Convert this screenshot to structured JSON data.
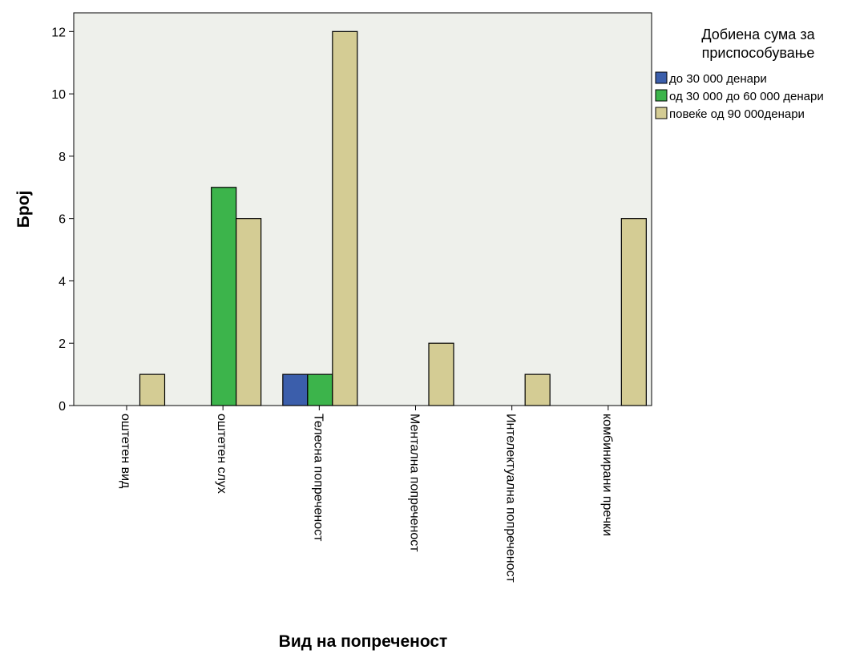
{
  "chart_data": {
    "type": "bar",
    "title": "",
    "xlabel": "Вид на попреченост",
    "ylabel": "Број",
    "ylim": [
      0,
      12.6
    ],
    "yticks": [
      0,
      2,
      4,
      6,
      8,
      10,
      12
    ],
    "grid": false,
    "legend_position": "right",
    "legend_title": [
      "Добиена сума за",
      "приспособување"
    ],
    "categories": [
      "оштетен вид",
      "оштетен слух",
      "Телесна попреченост",
      "Ментална попреченост",
      "Интелектуална попреченост",
      "комбинирани пречки"
    ],
    "series": [
      {
        "name": "до 30 000 денари",
        "color": "#3b5eab",
        "values": [
          0,
          0,
          1,
          0,
          0,
          0
        ]
      },
      {
        "name": "од 30 000 до 60 000 денари",
        "color": "#3cb44b",
        "values": [
          0,
          7,
          1,
          0,
          0,
          0
        ]
      },
      {
        "name": "повеќе од 90 000денари",
        "color": "#d4cc94",
        "values": [
          1,
          6,
          12,
          2,
          1,
          6
        ]
      }
    ],
    "plot_background": "#eef0eb"
  }
}
